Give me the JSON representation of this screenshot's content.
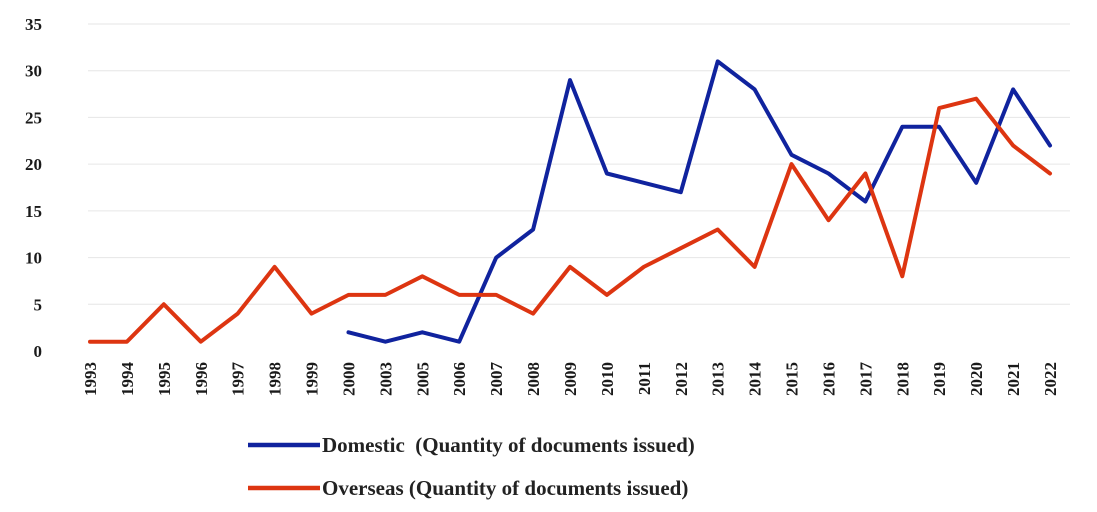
{
  "chart_data": {
    "type": "line",
    "categories": [
      "1993",
      "1994",
      "1995",
      "1996",
      "1997",
      "1998",
      "1999",
      "2000",
      "2003",
      "2005",
      "2006",
      "2007",
      "2008",
      "2009",
      "2010",
      "2011",
      "2012",
      "2013",
      "2014",
      "2015",
      "2016",
      "2017",
      "2018",
      "2019",
      "2020",
      "2021",
      "2022"
    ],
    "series": [
      {
        "name": "Domestic  (Quantity of documents issued)",
        "color": "#10239e",
        "values": [
          null,
          null,
          null,
          null,
          null,
          null,
          null,
          2,
          1,
          2,
          1,
          10,
          13,
          29,
          19,
          18,
          17,
          31,
          28,
          21,
          19,
          16,
          24,
          24,
          18,
          28,
          22
        ]
      },
      {
        "name": "Overseas (Quantity of documents issued)",
        "color": "#dd3511",
        "values": [
          1,
          1,
          5,
          1,
          4,
          9,
          4,
          6,
          6,
          8,
          6,
          6,
          4,
          9,
          6,
          9,
          11,
          13,
          9,
          20,
          14,
          19,
          8,
          26,
          27,
          22,
          19
        ]
      }
    ],
    "yticks": [
      "0",
      "5",
      "10",
      "15",
      "20",
      "25",
      "30",
      "35"
    ],
    "ylim": [
      0,
      35
    ],
    "grid": true,
    "legend_position": "bottom-center",
    "title": "",
    "xlabel": "",
    "ylabel": ""
  }
}
